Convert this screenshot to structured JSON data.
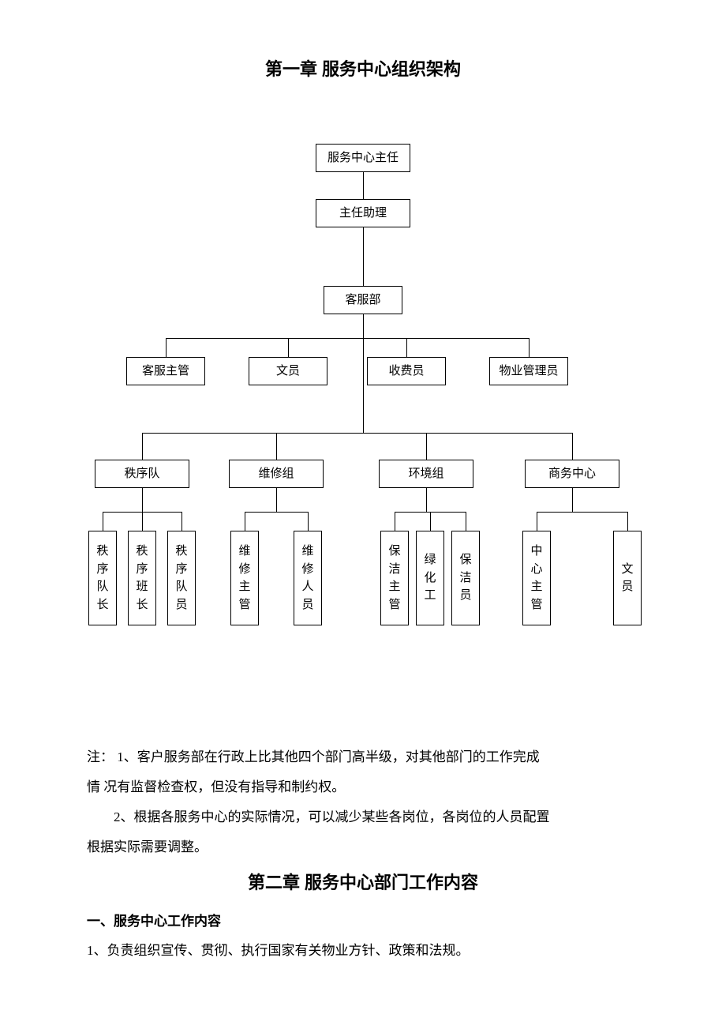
{
  "chapter1_title": "第一章 服务中心组织架构",
  "chapter2_title": "第二章 服务中心部门工作内容",
  "org": {
    "type": "tree",
    "node_border_color": "#000000",
    "node_bg_color": "#ffffff",
    "line_color": "#000000",
    "font_size": 15,
    "root": "服务中心主任",
    "l2": "主任助理",
    "l3": "客服部",
    "l4": [
      "客服主管",
      "文员",
      "收费员",
      "物业管理员"
    ],
    "l5": [
      "秩序队",
      "维修组",
      "环境组",
      "商务中心"
    ],
    "leaves": {
      "order": [
        "秩序队长",
        "秩序班长",
        "秩序队员"
      ],
      "repair": [
        "维修主管",
        "维修人员"
      ],
      "env": [
        "保洁主管",
        "绿化工",
        "保洁员"
      ],
      "biz": [
        "中心主管",
        "文员"
      ]
    }
  },
  "notes": {
    "prefix": "注：",
    "n1a": "1、客户服务部在行政上比其他四个部门高半级，对其他部门的工作完成",
    "n1b": "情 况有监督检查权，但没有指导和制约权。",
    "n2a": "2、根据各服务中心的实际情况，可以减少某些各岗位，各岗位的人员配置",
    "n2b": "根据实际需要调整。"
  },
  "section1_head": "一、服务中心工作内容",
  "section1_item1": "1、负责组织宣传、贯彻、执行国家有关物业方针、政策和法规。"
}
